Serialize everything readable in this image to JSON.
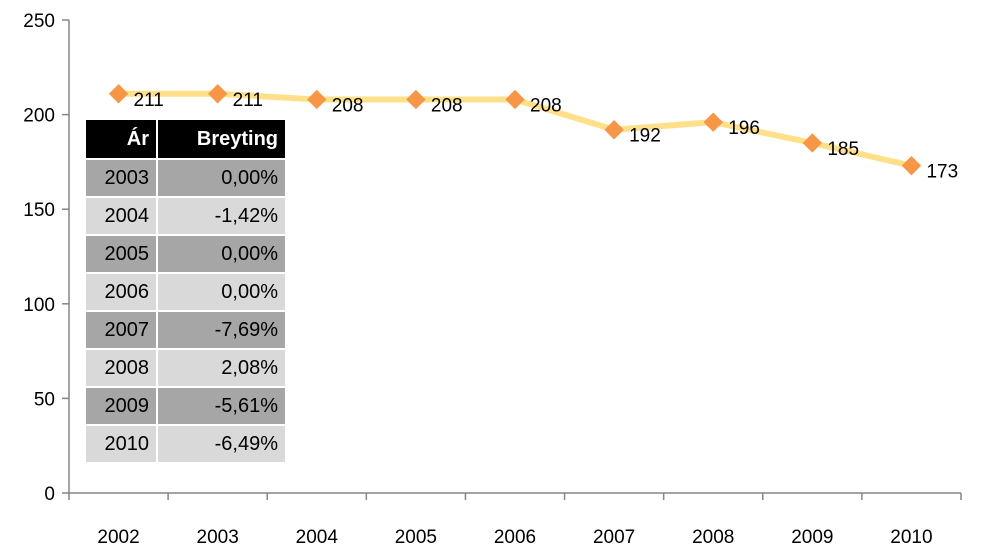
{
  "chart_data": {
    "type": "line",
    "title": "",
    "xlabel": "",
    "ylabel": "",
    "categories": [
      "2002",
      "2003",
      "2004",
      "2005",
      "2006",
      "2007",
      "2008",
      "2009",
      "2010"
    ],
    "series": [
      {
        "values": [
          211,
          211,
          208,
          208,
          208,
          192,
          196,
          185,
          173
        ]
      }
    ],
    "data_labels": [
      "211",
      "211",
      "208",
      "208",
      "208",
      "192",
      "196",
      "185",
      "173"
    ],
    "ylim": [
      0,
      250
    ],
    "yticks": [
      "0",
      "50",
      "100",
      "150",
      "200",
      "250"
    ],
    "grid": false,
    "legend": "none",
    "colors": {
      "line": "#ffe08a",
      "marker": "#f79646",
      "axis": "#868686"
    }
  },
  "table": {
    "headers": [
      "Ár",
      "Breyting"
    ],
    "rows": [
      {
        "year": "2003",
        "change": "0,00%"
      },
      {
        "year": "2004",
        "change": "-1,42%"
      },
      {
        "year": "2005",
        "change": "0,00%"
      },
      {
        "year": "2006",
        "change": "0,00%"
      },
      {
        "year": "2007",
        "change": "-7,69%"
      },
      {
        "year": "2008",
        "change": "2,08%"
      },
      {
        "year": "2009",
        "change": "-5,61%"
      },
      {
        "year": "2010",
        "change": "-6,49%"
      }
    ],
    "colors": {
      "header_bg": "#000000",
      "header_fg": "#ffffff",
      "row_dark": "#a6a6a6",
      "row_light": "#d9d9d9"
    }
  }
}
